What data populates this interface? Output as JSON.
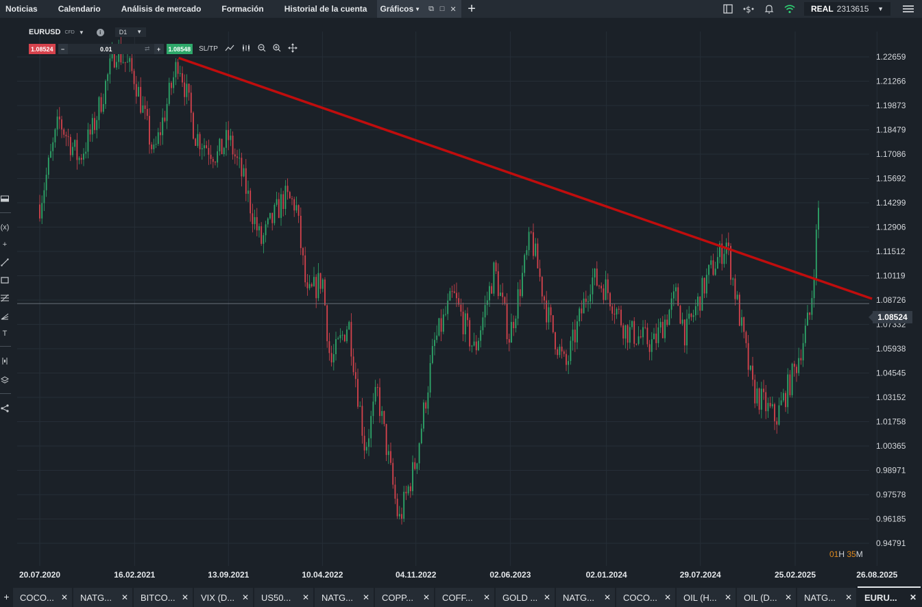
{
  "nav": {
    "tabs": [
      {
        "label": "Noticias"
      },
      {
        "label": "Calendario"
      },
      {
        "label": "Análisis de mercado"
      },
      {
        "label": "Formación"
      },
      {
        "label": "Historial de la cuenta"
      },
      {
        "label": "Gráficos"
      }
    ],
    "active_tab": "Gráficos"
  },
  "account": {
    "mode": "REAL",
    "number": "2313615"
  },
  "instrument": {
    "symbol": "EURUSD",
    "type": "CFD",
    "timeframe": "D1"
  },
  "trade": {
    "sell_price": "1.08524",
    "quantity": "0.01",
    "buy_price": "1.08548",
    "sltp_label": "SL/TP"
  },
  "current_price": "1.08524",
  "countdown": {
    "hours": "01",
    "h_unit": "H",
    "minutes": "35",
    "m_unit": "M"
  },
  "chart_data": {
    "type": "candlestick",
    "instrument": "EURUSD",
    "timeframe": "D1",
    "y_ticks": [
      "1.22659",
      "1.21266",
      "1.19873",
      "1.18479",
      "1.17086",
      "1.15692",
      "1.14299",
      "1.12906",
      "1.11512",
      "1.10119",
      "1.08726",
      "1.07332",
      "1.05938",
      "1.04545",
      "1.03152",
      "1.01758",
      "1.00365",
      "0.98971",
      "0.97578",
      "0.96185",
      "0.94791"
    ],
    "x_ticks": [
      "20.07.2020",
      "16.02.2021",
      "13.09.2021",
      "10.04.2022",
      "04.11.2022",
      "02.06.2023",
      "02.01.2024",
      "29.07.2024",
      "25.02.2025",
      "26.08.2025"
    ],
    "price_path": [
      [
        "2020-07-20",
        1.142
      ],
      [
        "2020-09-01",
        1.19
      ],
      [
        "2020-10-15",
        1.168
      ],
      [
        "2020-11-15",
        1.185
      ],
      [
        "2021-01-06",
        1.232
      ],
      [
        "2021-02-16",
        1.215
      ],
      [
        "2021-03-31",
        1.17
      ],
      [
        "2021-05-25",
        1.226
      ],
      [
        "2021-07-01",
        1.182
      ],
      [
        "2021-08-20",
        1.17
      ],
      [
        "2021-09-13",
        1.18
      ],
      [
        "2021-10-15",
        1.157
      ],
      [
        "2021-11-24",
        1.12
      ],
      [
        "2022-01-14",
        1.146
      ],
      [
        "2022-02-10",
        1.142
      ],
      [
        "2022-03-07",
        1.088
      ],
      [
        "2022-04-10",
        1.1
      ],
      [
        "2022-04-28",
        1.05
      ],
      [
        "2022-06-07",
        1.075
      ],
      [
        "2022-07-14",
        1.002
      ],
      [
        "2022-08-10",
        1.035
      ],
      [
        "2022-09-27",
        0.96
      ],
      [
        "2022-11-04",
        0.995
      ],
      [
        "2022-12-15",
        1.062
      ],
      [
        "2023-01-26",
        1.09
      ],
      [
        "2023-03-15",
        1.058
      ],
      [
        "2023-04-28",
        1.105
      ],
      [
        "2023-05-31",
        1.066
      ],
      [
        "2023-07-18",
        1.124
      ],
      [
        "2023-08-25",
        1.078
      ],
      [
        "2023-10-03",
        1.048
      ],
      [
        "2023-11-29",
        1.1
      ],
      [
        "2024-01-02",
        1.094
      ],
      [
        "2024-02-14",
        1.07
      ],
      [
        "2024-04-16",
        1.062
      ],
      [
        "2024-06-06",
        1.09
      ],
      [
        "2024-06-26",
        1.067
      ],
      [
        "2024-08-15",
        1.101
      ],
      [
        "2024-09-25",
        1.12
      ],
      [
        "2024-11-22",
        1.036
      ],
      [
        "2025-01-13",
        1.019
      ],
      [
        "2025-02-25",
        1.048
      ],
      [
        "2025-03-31",
        1.08
      ],
      [
        "2025-04-21",
        1.15
      ]
    ],
    "trendline": {
      "from": [
        "2021-05-25",
        1.226
      ],
      "to": [
        "2025-08-15",
        1.088
      ]
    },
    "colors": {
      "up": "#2ea86a",
      "down": "#d7434d",
      "trendline": "#c00d0d"
    }
  },
  "bottom_tabs": [
    {
      "label": "COCO..."
    },
    {
      "label": "NATG..."
    },
    {
      "label": "BITCO..."
    },
    {
      "label": "VIX (D..."
    },
    {
      "label": "US50..."
    },
    {
      "label": "NATG..."
    },
    {
      "label": "COPP..."
    },
    {
      "label": "COFF..."
    },
    {
      "label": "GOLD ..."
    },
    {
      "label": "NATG..."
    },
    {
      "label": "COCO..."
    },
    {
      "label": "OIL (H..."
    },
    {
      "label": "OIL (D..."
    },
    {
      "label": "NATG..."
    },
    {
      "label": "EURU..."
    }
  ],
  "active_bottom_tab": 14
}
